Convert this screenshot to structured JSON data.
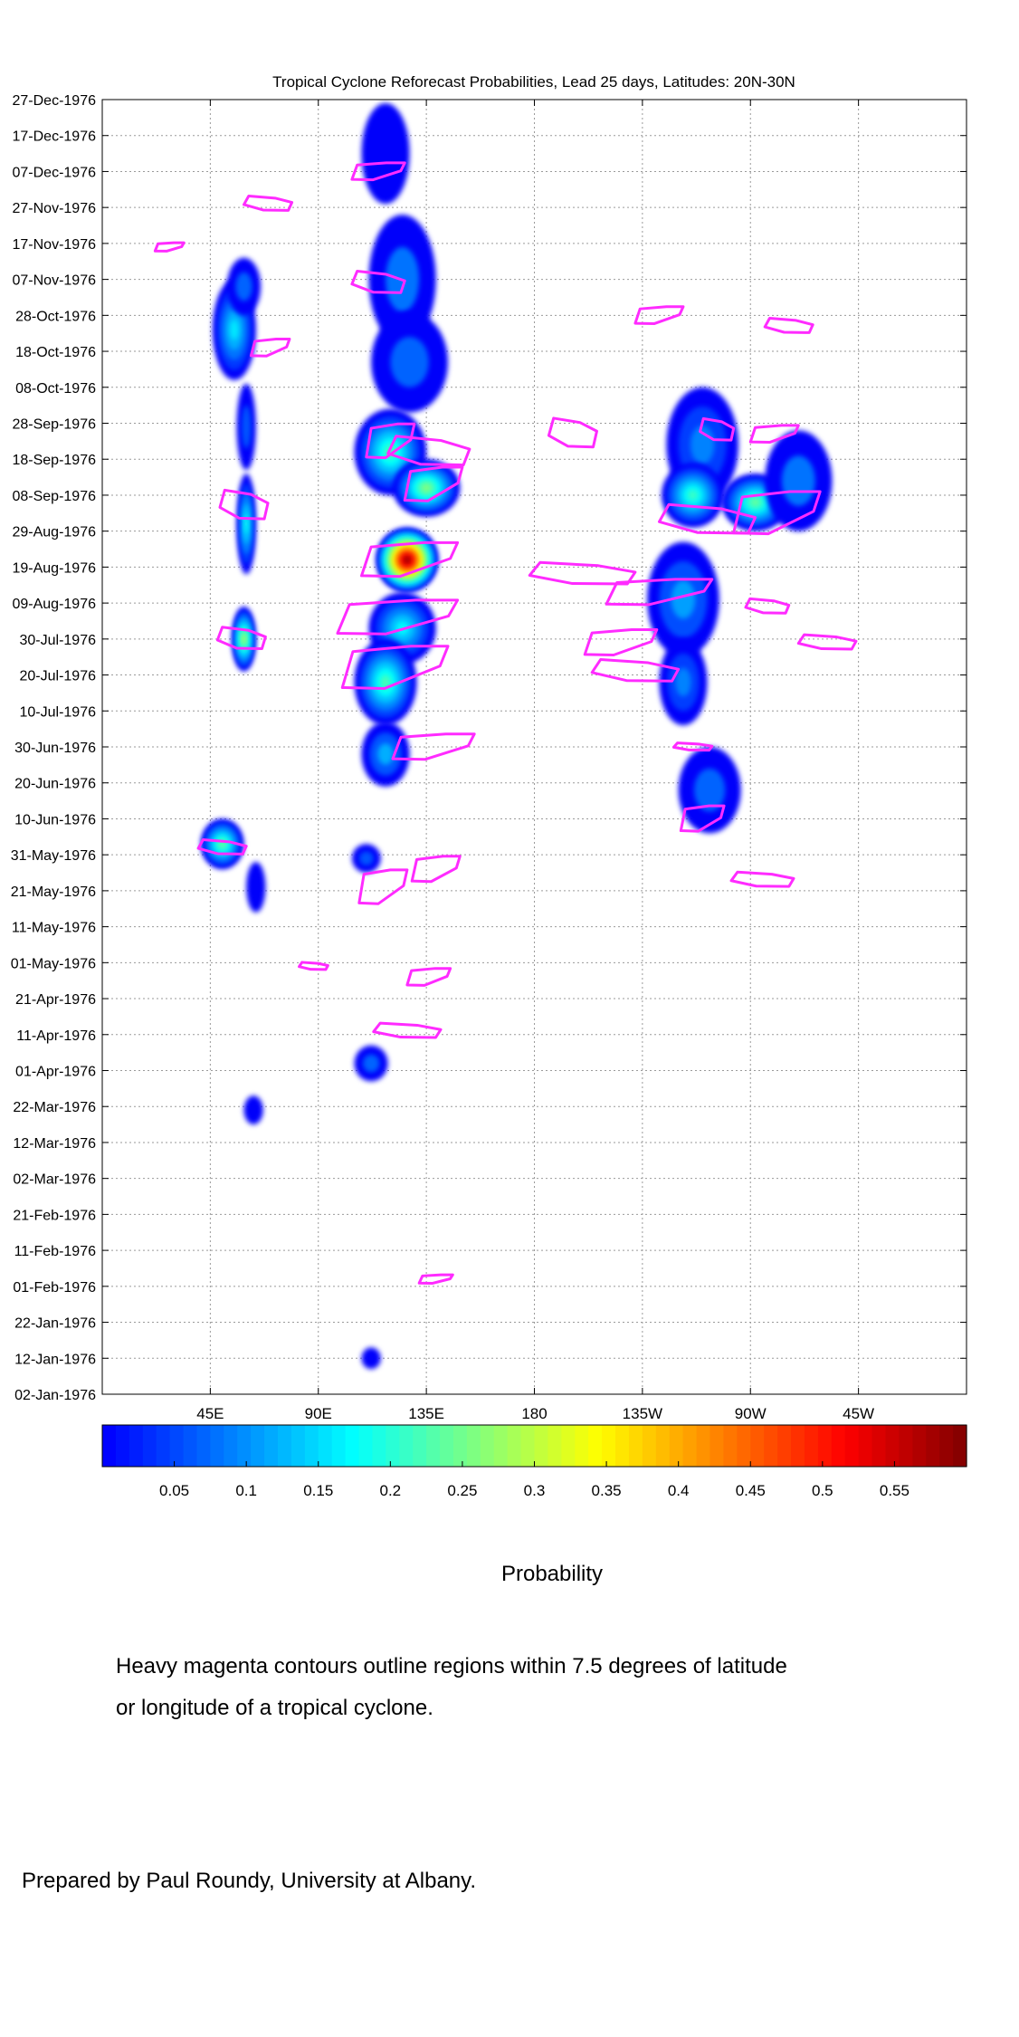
{
  "chart_data": {
    "type": "heatmap",
    "title": "Tropical Cyclone Reforecast Probabilities, Lead 25 days, Latitudes: 20N-30N",
    "y_ticks": [
      "27-Dec-1976",
      "17-Dec-1976",
      "07-Dec-1976",
      "27-Nov-1976",
      "17-Nov-1976",
      "07-Nov-1976",
      "28-Oct-1976",
      "18-Oct-1976",
      "08-Oct-1976",
      "28-Sep-1976",
      "18-Sep-1976",
      "08-Sep-1976",
      "29-Aug-1976",
      "19-Aug-1976",
      "09-Aug-1976",
      "30-Jul-1976",
      "20-Jul-1976",
      "10-Jul-1976",
      "30-Jun-1976",
      "20-Jun-1976",
      "10-Jun-1976",
      "31-May-1976",
      "21-May-1976",
      "11-May-1976",
      "01-May-1976",
      "21-Apr-1976",
      "11-Apr-1976",
      "01-Apr-1976",
      "22-Mar-1976",
      "12-Mar-1976",
      "02-Mar-1976",
      "21-Feb-1976",
      "11-Feb-1976",
      "01-Feb-1976",
      "22-Jan-1976",
      "12-Jan-1976",
      "02-Jan-1976"
    ],
    "x_ticks": [
      "45E",
      "90E",
      "135E",
      "180",
      "135W",
      "90W",
      "45W"
    ],
    "x_tick_values": [
      45,
      90,
      135,
      180,
      225,
      270,
      315
    ],
    "xlim": [
      0,
      360
    ],
    "ylim": [
      "02-Jan-1976",
      "27-Dec-1976"
    ],
    "grid": true,
    "colorbar": {
      "label": "Probability",
      "range": [
        0,
        0.6
      ],
      "ticks": [
        "0.05",
        "0.1",
        "0.15",
        "0.2",
        "0.25",
        "0.3",
        "0.35",
        "0.4",
        "0.45",
        "0.5",
        "0.55"
      ],
      "tick_values": [
        0.05,
        0.1,
        0.15,
        0.2,
        0.25,
        0.3,
        0.35,
        0.4,
        0.45,
        0.5,
        0.55
      ],
      "colormap": "jet"
    },
    "blobs": [
      {
        "lon": 118,
        "date": "1976-12-12",
        "dlon": 10,
        "ddays": 14,
        "p": 0.05
      },
      {
        "lon": 55,
        "date": "1976-10-24",
        "dlon": 9,
        "ddays": 14,
        "p": 0.16
      },
      {
        "lon": 59,
        "date": "1976-11-05",
        "dlon": 7,
        "ddays": 8,
        "p": 0.07
      },
      {
        "lon": 60,
        "date": "1976-09-27",
        "dlon": 4,
        "ddays": 12,
        "p": 0.06
      },
      {
        "lon": 60,
        "date": "1976-08-31",
        "dlon": 4,
        "ddays": 14,
        "p": 0.18
      },
      {
        "lon": 59,
        "date": "1976-07-30",
        "dlon": 5,
        "ddays": 9,
        "p": 0.28
      },
      {
        "lon": 50,
        "date": "1976-06-03",
        "dlon": 9,
        "ddays": 7,
        "p": 0.24
      },
      {
        "lon": 64,
        "date": "1976-05-22",
        "dlon": 4,
        "ddays": 7,
        "p": 0.05
      },
      {
        "lon": 63,
        "date": "1976-03-21",
        "dlon": 4,
        "ddays": 4,
        "p": 0.05
      },
      {
        "lon": 125,
        "date": "1976-11-07",
        "dlon": 14,
        "ddays": 18,
        "p": 0.08
      },
      {
        "lon": 128,
        "date": "1976-10-15",
        "dlon": 16,
        "ddays": 14,
        "p": 0.07
      },
      {
        "lon": 120,
        "date": "1976-09-20",
        "dlon": 15,
        "ddays": 12,
        "p": 0.22
      },
      {
        "lon": 135,
        "date": "1976-09-10",
        "dlon": 14,
        "ddays": 8,
        "p": 0.26
      },
      {
        "lon": 127,
        "date": "1976-08-21",
        "dlon": 13,
        "ddays": 9,
        "p": 0.6
      },
      {
        "lon": 125,
        "date": "1976-08-02",
        "dlon": 14,
        "ddays": 10,
        "p": 0.17
      },
      {
        "lon": 118,
        "date": "1976-07-18",
        "dlon": 13,
        "ddays": 12,
        "p": 0.22
      },
      {
        "lon": 118,
        "date": "1976-06-28",
        "dlon": 10,
        "ddays": 9,
        "p": 0.12
      },
      {
        "lon": 110,
        "date": "1976-05-30",
        "dlon": 6,
        "ddays": 4,
        "p": 0.06
      },
      {
        "lon": 112,
        "date": "1976-04-03",
        "dlon": 7,
        "ddays": 5,
        "p": 0.07
      },
      {
        "lon": 112,
        "date": "1976-01-12",
        "dlon": 4,
        "ddays": 3,
        "p": 0.05
      },
      {
        "lon": 250,
        "date": "1976-09-22",
        "dlon": 15,
        "ddays": 16,
        "p": 0.09
      },
      {
        "lon": 246,
        "date": "1976-09-08",
        "dlon": 13,
        "ddays": 9,
        "p": 0.21
      },
      {
        "lon": 272,
        "date": "1976-09-06",
        "dlon": 14,
        "ddays": 8,
        "p": 0.24
      },
      {
        "lon": 290,
        "date": "1976-09-12",
        "dlon": 14,
        "ddays": 14,
        "p": 0.08
      },
      {
        "lon": 242,
        "date": "1976-08-10",
        "dlon": 15,
        "ddays": 16,
        "p": 0.11
      },
      {
        "lon": 242,
        "date": "1976-07-18",
        "dlon": 10,
        "ddays": 12,
        "p": 0.09
      },
      {
        "lon": 253,
        "date": "1976-06-18",
        "dlon": 13,
        "ddays": 12,
        "p": 0.07
      }
    ],
    "tc_contours": [
      {
        "lon": 115,
        "date": "1976-12-07",
        "dlon": 11,
        "ddays": 2
      },
      {
        "lon": 69,
        "date": "1976-11-28",
        "dlon": 10,
        "ddays": 2
      },
      {
        "lon": 28,
        "date": "1976-11-16",
        "dlon": 6,
        "ddays": 1
      },
      {
        "lon": 115,
        "date": "1976-11-06",
        "dlon": 11,
        "ddays": 3
      },
      {
        "lon": 232,
        "date": "1976-10-28",
        "dlon": 10,
        "ddays": 2
      },
      {
        "lon": 286,
        "date": "1976-10-25",
        "dlon": 10,
        "ddays": 2
      },
      {
        "lon": 70,
        "date": "1976-10-19",
        "dlon": 8,
        "ddays": 2
      },
      {
        "lon": 136,
        "date": "1976-09-20",
        "dlon": 17,
        "ddays": 4
      },
      {
        "lon": 120,
        "date": "1976-09-23",
        "dlon": 10,
        "ddays": 4
      },
      {
        "lon": 196,
        "date": "1976-09-25",
        "dlon": 10,
        "ddays": 4
      },
      {
        "lon": 280,
        "date": "1976-09-25",
        "dlon": 10,
        "ddays": 2
      },
      {
        "lon": 256,
        "date": "1976-09-26",
        "dlon": 7,
        "ddays": 3
      },
      {
        "lon": 138,
        "date": "1976-09-11",
        "dlon": 12,
        "ddays": 4
      },
      {
        "lon": 252,
        "date": "1976-09-01",
        "dlon": 20,
        "ddays": 4
      },
      {
        "lon": 281,
        "date": "1976-09-03",
        "dlon": 18,
        "ddays": 5
      },
      {
        "lon": 59,
        "date": "1976-09-05",
        "dlon": 10,
        "ddays": 4
      },
      {
        "lon": 128,
        "date": "1976-08-21",
        "dlon": 20,
        "ddays": 4
      },
      {
        "lon": 200,
        "date": "1976-08-17",
        "dlon": 22,
        "ddays": 3
      },
      {
        "lon": 232,
        "date": "1976-08-12",
        "dlon": 22,
        "ddays": 3
      },
      {
        "lon": 277,
        "date": "1976-08-08",
        "dlon": 9,
        "ddays": 2
      },
      {
        "lon": 123,
        "date": "1976-08-05",
        "dlon": 25,
        "ddays": 4
      },
      {
        "lon": 58,
        "date": "1976-07-30",
        "dlon": 10,
        "ddays": 3
      },
      {
        "lon": 216,
        "date": "1976-07-29",
        "dlon": 15,
        "ddays": 3
      },
      {
        "lon": 302,
        "date": "1976-07-29",
        "dlon": 12,
        "ddays": 2
      },
      {
        "lon": 122,
        "date": "1976-07-22",
        "dlon": 22,
        "ddays": 5
      },
      {
        "lon": 222,
        "date": "1976-07-21",
        "dlon": 18,
        "ddays": 3
      },
      {
        "lon": 138,
        "date": "1976-06-30",
        "dlon": 17,
        "ddays": 3
      },
      {
        "lon": 246,
        "date": "1976-06-30",
        "dlon": 8,
        "ddays": 1
      },
      {
        "lon": 250,
        "date": "1976-06-10",
        "dlon": 9,
        "ddays": 3
      },
      {
        "lon": 50,
        "date": "1976-06-02",
        "dlon": 10,
        "ddays": 2
      },
      {
        "lon": 139,
        "date": "1976-05-27",
        "dlon": 10,
        "ddays": 3
      },
      {
        "lon": 275,
        "date": "1976-05-24",
        "dlon": 13,
        "ddays": 2
      },
      {
        "lon": 117,
        "date": "1976-05-22",
        "dlon": 10,
        "ddays": 4
      },
      {
        "lon": 88,
        "date": "1976-04-30",
        "dlon": 6,
        "ddays": 1
      },
      {
        "lon": 136,
        "date": "1976-04-27",
        "dlon": 9,
        "ddays": 2
      },
      {
        "lon": 127,
        "date": "1976-04-12",
        "dlon": 14,
        "ddays": 2
      },
      {
        "lon": 139,
        "date": "1976-02-03",
        "dlon": 7,
        "ddays": 1
      }
    ]
  },
  "caption": {
    "colorbar_label": "Probability",
    "note_line1": "Heavy magenta contours outline regions within 7.5 degrees of latitude",
    "note_line2": "or longitude of a tropical cyclone.",
    "credit": "Prepared by Paul Roundy, University at Albany."
  }
}
